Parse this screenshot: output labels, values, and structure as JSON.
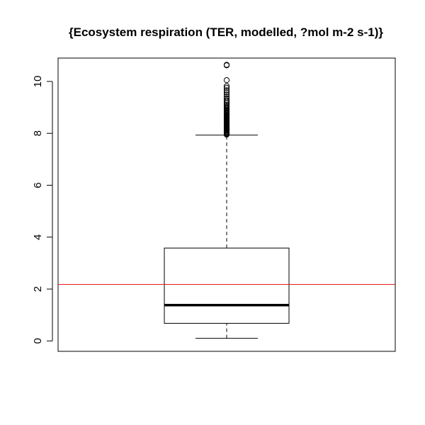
{
  "chart_data": {
    "type": "box",
    "title": "{Ecosystem respiration (TER, modelled, ?mol m-2 s-1)}",
    "xlabel": "",
    "ylabel": "",
    "ylim": [
      -0.4,
      10.9
    ],
    "y_ticks": [
      0,
      2,
      4,
      6,
      8,
      10
    ],
    "y_tick_labels": [
      "0",
      "2",
      "4",
      "6",
      "8",
      "10"
    ],
    "grid": false,
    "legend": "none",
    "box": {
      "lower_whisker": 0.1,
      "q1": 0.68,
      "median": 1.38,
      "q3": 3.58,
      "upper_whisker": 7.93
    },
    "outliers": [
      7.95,
      7.98,
      8.01,
      8.04,
      8.07,
      8.1,
      8.13,
      8.16,
      8.19,
      8.22,
      8.25,
      8.28,
      8.31,
      8.34,
      8.37,
      8.4,
      8.43,
      8.46,
      8.49,
      8.52,
      8.55,
      8.58,
      8.61,
      8.64,
      8.67,
      8.7,
      8.73,
      8.76,
      8.79,
      8.82,
      8.85,
      8.88,
      8.92,
      8.96,
      9.0,
      9.05,
      9.1,
      9.16,
      9.22,
      9.28,
      9.35,
      9.42,
      9.5,
      9.58,
      9.66,
      9.75,
      9.82,
      10.05,
      10.62,
      10.64
    ],
    "reference_line": {
      "y": 2.18,
      "color": "#e0201b"
    },
    "colors": {
      "box_stroke": "#000000",
      "median": "#000000",
      "axis": "#000000"
    }
  }
}
